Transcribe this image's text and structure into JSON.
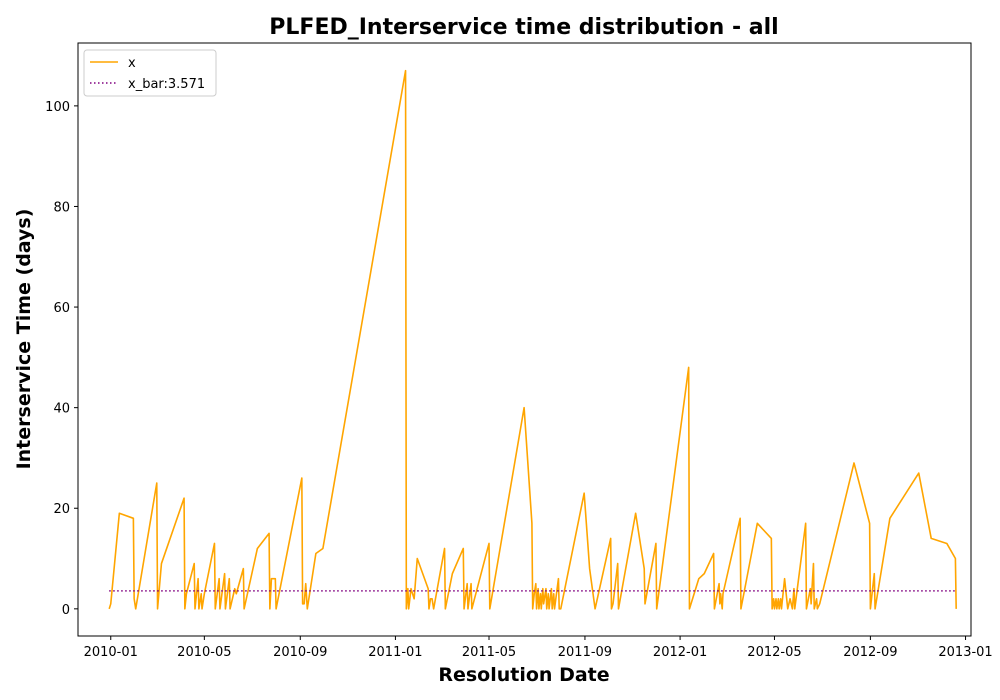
{
  "chart_data": {
    "type": "line",
    "title": "PLFED_Interservice time distribution - all",
    "xlabel": "Resolution Date",
    "ylabel": "Interservice Time (days)",
    "xlim": [
      "2009-11-20",
      "2013-01-08"
    ],
    "ylim": [
      -5.4,
      112.5
    ],
    "x_ticks": [
      "2010-01",
      "2010-05",
      "2010-09",
      "2011-01",
      "2011-05",
      "2011-09",
      "2012-01",
      "2012-05",
      "2012-09",
      "2013-01"
    ],
    "y_ticks": [
      0,
      20,
      40,
      60,
      80,
      100
    ],
    "grid": false,
    "legend_position": "upper-left",
    "series": [
      {
        "name": "x",
        "color": "#ffa500",
        "style": "solid",
        "points": [
          [
            "2009-12-30",
            0
          ],
          [
            "2010-01-01",
            1
          ],
          [
            "2010-01-12",
            19
          ],
          [
            "2010-01-30",
            18
          ],
          [
            "2010-01-31",
            2
          ],
          [
            "2010-02-02",
            0
          ],
          [
            "2010-03-01",
            25
          ],
          [
            "2010-03-02",
            0
          ],
          [
            "2010-03-07",
            9
          ],
          [
            "2010-04-05",
            22
          ],
          [
            "2010-04-06",
            0
          ],
          [
            "2010-04-08",
            3
          ],
          [
            "2010-04-18",
            9
          ],
          [
            "2010-04-19",
            0
          ],
          [
            "2010-04-23",
            6
          ],
          [
            "2010-04-24",
            0
          ],
          [
            "2010-04-27",
            3
          ],
          [
            "2010-04-28",
            0
          ],
          [
            "2010-05-01",
            3
          ],
          [
            "2010-05-14",
            13
          ],
          [
            "2010-05-15",
            0
          ],
          [
            "2010-05-20",
            6
          ],
          [
            "2010-05-21",
            0
          ],
          [
            "2010-05-27",
            7
          ],
          [
            "2010-05-28",
            0
          ],
          [
            "2010-06-02",
            6
          ],
          [
            "2010-06-03",
            0
          ],
          [
            "2010-06-09",
            4
          ],
          [
            "2010-06-11",
            3
          ],
          [
            "2010-06-20",
            8
          ],
          [
            "2010-06-21",
            0
          ],
          [
            "2010-07-08",
            12
          ],
          [
            "2010-07-23",
            15
          ],
          [
            "2010-07-24",
            0
          ],
          [
            "2010-07-26",
            6
          ],
          [
            "2010-07-31",
            6
          ],
          [
            "2010-08-01",
            0
          ],
          [
            "2010-09-03",
            26
          ],
          [
            "2010-09-04",
            1
          ],
          [
            "2010-09-06",
            1
          ],
          [
            "2010-09-08",
            5
          ],
          [
            "2010-09-10",
            0
          ],
          [
            "2010-09-21",
            11
          ],
          [
            "2010-09-30",
            12
          ],
          [
            "2011-01-14",
            107
          ],
          [
            "2011-01-15",
            0
          ],
          [
            "2011-01-17",
            4
          ],
          [
            "2011-01-18",
            0
          ],
          [
            "2011-01-21",
            4
          ],
          [
            "2011-01-25",
            2
          ],
          [
            "2011-01-29",
            10
          ],
          [
            "2011-02-12",
            4
          ],
          [
            "2011-02-13",
            0
          ],
          [
            "2011-02-15",
            2
          ],
          [
            "2011-02-17",
            2
          ],
          [
            "2011-02-19",
            0
          ],
          [
            "2011-03-05",
            12
          ],
          [
            "2011-03-06",
            0
          ],
          [
            "2011-03-15",
            7
          ],
          [
            "2011-03-29",
            12
          ],
          [
            "2011-03-30",
            0
          ],
          [
            "2011-04-03",
            5
          ],
          [
            "2011-04-04",
            0
          ],
          [
            "2011-04-08",
            5
          ],
          [
            "2011-04-09",
            0
          ],
          [
            "2011-05-01",
            13
          ],
          [
            "2011-05-02",
            0
          ],
          [
            "2011-06-15",
            40
          ],
          [
            "2011-06-25",
            17
          ],
          [
            "2011-06-26",
            0
          ],
          [
            "2011-06-28",
            3
          ],
          [
            "2011-06-30",
            5
          ],
          [
            "2011-07-01",
            0
          ],
          [
            "2011-07-03",
            4
          ],
          [
            "2011-07-04",
            0
          ],
          [
            "2011-07-06",
            3
          ],
          [
            "2011-07-07",
            0
          ],
          [
            "2011-07-09",
            4
          ],
          [
            "2011-07-10",
            1
          ],
          [
            "2011-07-13",
            4
          ],
          [
            "2011-07-14",
            0
          ],
          [
            "2011-07-16",
            3
          ],
          [
            "2011-07-17",
            0
          ],
          [
            "2011-07-20",
            4
          ],
          [
            "2011-07-21",
            0
          ],
          [
            "2011-07-23",
            3
          ],
          [
            "2011-07-24",
            0
          ],
          [
            "2011-07-29",
            6
          ],
          [
            "2011-07-30",
            0
          ],
          [
            "2011-08-01",
            0
          ],
          [
            "2011-08-31",
            23
          ],
          [
            "2011-09-07",
            8
          ],
          [
            "2011-09-14",
            0
          ],
          [
            "2011-10-04",
            14
          ],
          [
            "2011-10-05",
            0
          ],
          [
            "2011-10-07",
            1
          ],
          [
            "2011-10-13",
            9
          ],
          [
            "2011-10-14",
            0
          ],
          [
            "2011-11-05",
            19
          ],
          [
            "2011-11-16",
            8
          ],
          [
            "2011-11-17",
            1
          ],
          [
            "2011-12-01",
            13
          ],
          [
            "2011-12-02",
            0
          ],
          [
            "2012-01-12",
            48
          ],
          [
            "2012-01-13",
            0
          ],
          [
            "2012-01-25",
            6
          ],
          [
            "2012-02-01",
            7
          ],
          [
            "2012-02-13",
            11
          ],
          [
            "2012-02-14",
            0
          ],
          [
            "2012-02-20",
            5
          ],
          [
            "2012-02-21",
            1
          ],
          [
            "2012-02-22",
            3
          ],
          [
            "2012-02-24",
            0
          ],
          [
            "2012-02-25",
            3
          ],
          [
            "2012-03-18",
            18
          ],
          [
            "2012-03-19",
            0
          ],
          [
            "2012-04-09",
            17
          ],
          [
            "2012-04-27",
            14
          ],
          [
            "2012-04-28",
            0
          ],
          [
            "2012-04-30",
            2
          ],
          [
            "2012-05-01",
            0
          ],
          [
            "2012-05-03",
            2
          ],
          [
            "2012-05-04",
            0
          ],
          [
            "2012-05-06",
            2
          ],
          [
            "2012-05-07",
            0
          ],
          [
            "2012-05-09",
            2
          ],
          [
            "2012-05-10",
            0
          ],
          [
            "2012-05-14",
            6
          ],
          [
            "2012-05-18",
            0
          ],
          [
            "2012-05-21",
            2
          ],
          [
            "2012-05-24",
            0
          ],
          [
            "2012-05-26",
            4
          ],
          [
            "2012-05-27",
            0
          ],
          [
            "2012-06-10",
            17
          ],
          [
            "2012-06-11",
            0
          ],
          [
            "2012-06-16",
            4
          ],
          [
            "2012-06-17",
            1
          ],
          [
            "2012-06-20",
            9
          ],
          [
            "2012-06-21",
            0
          ],
          [
            "2012-06-24",
            2
          ],
          [
            "2012-06-25",
            0
          ],
          [
            "2012-06-28",
            1
          ],
          [
            "2012-08-11",
            29
          ],
          [
            "2012-08-31",
            17
          ],
          [
            "2012-09-01",
            0
          ],
          [
            "2012-09-06",
            7
          ],
          [
            "2012-09-07",
            0
          ],
          [
            "2012-09-26",
            18
          ],
          [
            "2012-11-02",
            27
          ],
          [
            "2012-11-18",
            14
          ],
          [
            "2012-12-08",
            13
          ],
          [
            "2012-12-19",
            10
          ],
          [
            "2012-12-20",
            0
          ]
        ]
      },
      {
        "name": "x_bar:3.571",
        "color": "#800080",
        "style": "dotted",
        "points": [
          [
            "2009-12-30",
            3.571
          ],
          [
            "2012-12-20",
            3.571
          ]
        ]
      }
    ]
  }
}
